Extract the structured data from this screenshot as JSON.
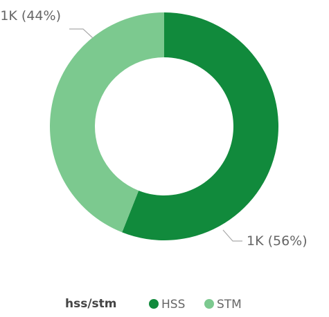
{
  "chart_data": {
    "type": "donut",
    "legend_title": "hss/stm",
    "categories": [
      "HSS",
      "STM"
    ],
    "values": [
      56,
      44
    ],
    "value_labels": [
      "1K (56%)",
      "1K (44%)"
    ],
    "colors": [
      "#118a3c",
      "#7cc98f"
    ],
    "legend": "bottom"
  }
}
